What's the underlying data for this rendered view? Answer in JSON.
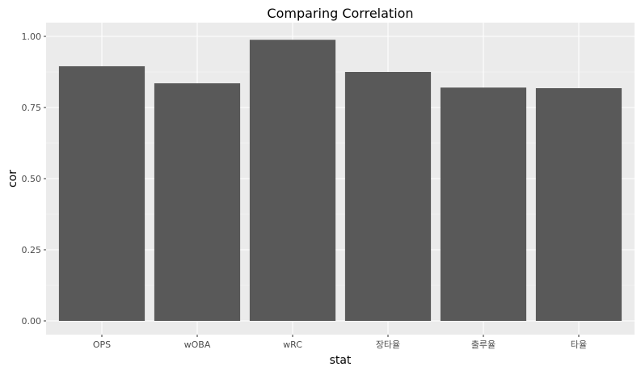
{
  "chart_data": {
    "type": "bar",
    "title": "Comparing Correlation",
    "xlabel": "stat",
    "ylabel": "cor",
    "categories": [
      "OPS",
      "wOBA",
      "wRC",
      "장타율",
      "출루율",
      "타율"
    ],
    "values": [
      0.895,
      0.835,
      0.988,
      0.875,
      0.82,
      0.818
    ],
    "ylim": [
      0,
      1.0
    ],
    "yticks": [
      0.0,
      0.25,
      0.5,
      0.75,
      1.0
    ],
    "ytick_labels": [
      "0.00",
      "0.25",
      "0.50",
      "0.75",
      "1.00"
    ],
    "grid": true,
    "legend": "none"
  },
  "colors": {
    "panel_background": "#ebebeb",
    "grid_major": "#ffffff",
    "grid_minor": "#f5f5f5",
    "bar_fill": "#595959",
    "tick_mark": "#333333"
  }
}
